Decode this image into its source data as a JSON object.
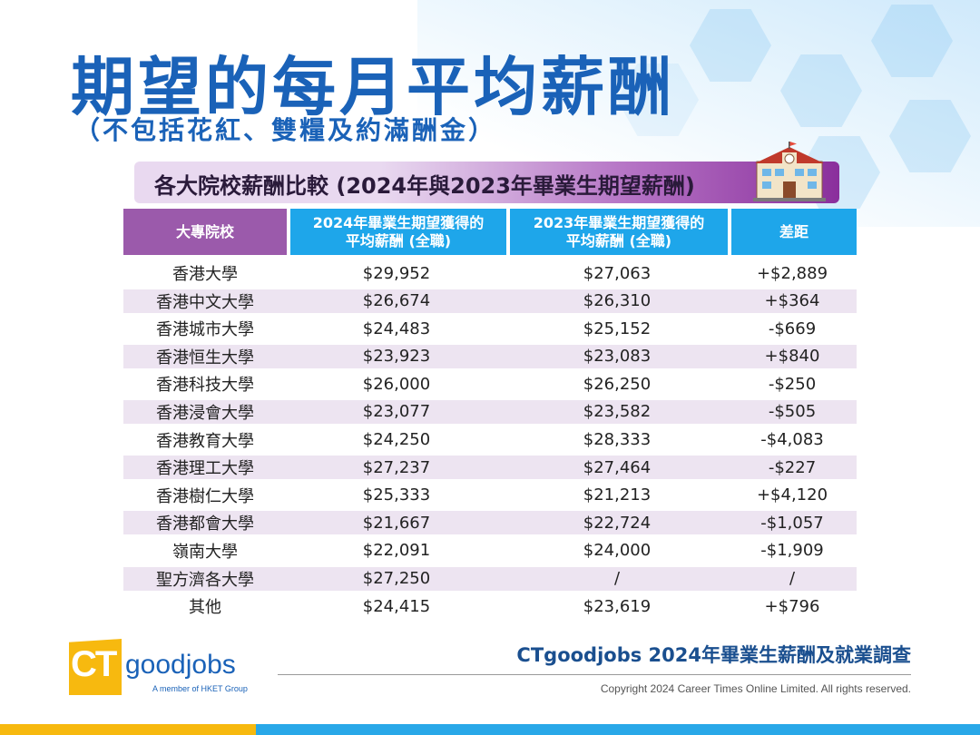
{
  "title": "期望的每月平均薪酬",
  "subtitle": "（不包括花紅、雙糧及約滿酬金）",
  "banner": "各大院校薪酬比較 (2024年與2023年畢業生期望薪酬)",
  "table": {
    "headers": [
      "大專院校",
      "2024年畢業生期望獲得的\n平均薪酬 (全職)",
      "2023年畢業生期望獲得的\n平均薪酬 (全職)",
      "差距"
    ],
    "rows": [
      [
        "香港大學",
        "$29,952",
        "$27,063",
        "+$2,889"
      ],
      [
        "香港中文大學",
        "$26,674",
        "$26,310",
        "+$364"
      ],
      [
        "香港城市大學",
        "$24,483",
        "$25,152",
        "-$669"
      ],
      [
        "香港恒生大學",
        "$23,923",
        "$23,083",
        "+$840"
      ],
      [
        "香港科技大學",
        "$26,000",
        "$26,250",
        "-$250"
      ],
      [
        "香港浸會大學",
        "$23,077",
        "$23,582",
        "-$505"
      ],
      [
        "香港教育大學",
        "$24,250",
        "$28,333",
        "-$4,083"
      ],
      [
        "香港理工大學",
        "$27,237",
        "$27,464",
        "-$227"
      ],
      [
        "香港樹仁大學",
        "$25,333",
        "$21,213",
        "+$4,120"
      ],
      [
        "香港都會大學",
        "$21,667",
        "$22,724",
        "-$1,057"
      ],
      [
        "嶺南大學",
        "$22,091",
        "$24,000",
        "-$1,909"
      ],
      [
        "聖方濟各大學",
        "$27,250",
        "/",
        "/"
      ],
      [
        "其他",
        "$24,415",
        "$23,619",
        "+$796"
      ]
    ]
  },
  "logo": {
    "ct": "CT",
    "name": "goodjobs",
    "tagline": "A member of HKET Group"
  },
  "survey_title": "CTgoodjobs 2024年畢業生薪酬及就業調查",
  "copyright": "Copyright 2024 Career Times Online Limited. All rights reserved.",
  "colors": {
    "title_blue": "#1a62b8",
    "header_purple": "#9b5aab",
    "header_blue": "#1ea6ea",
    "row_alt": "#ede4f1",
    "accent_yellow": "#f7b90f"
  }
}
